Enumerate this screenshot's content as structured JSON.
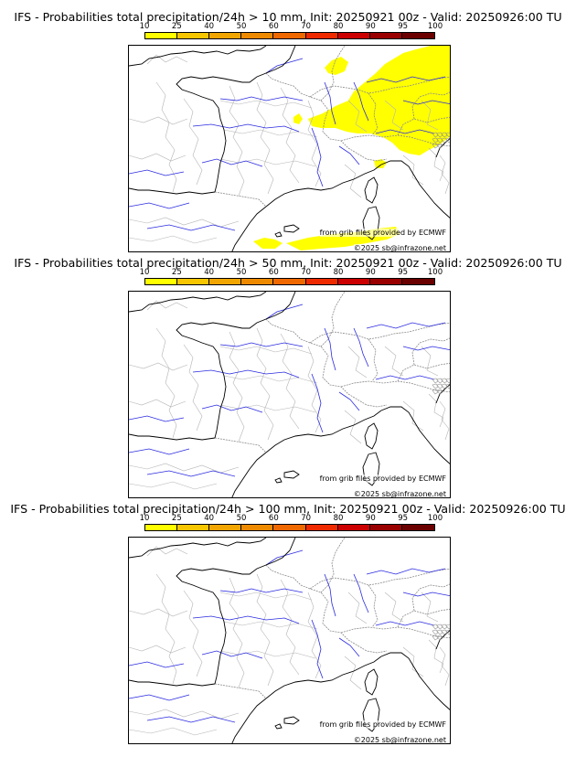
{
  "colors": {
    "coast": "#000000",
    "border": "#8c8c8c",
    "river": "#2a2ae0",
    "prob_10_25": "#ffff00"
  },
  "legend": {
    "ticks": [
      "10",
      "25",
      "40",
      "50",
      "60",
      "70",
      "80",
      "90",
      "95",
      "100"
    ],
    "colors": [
      "#ffff00",
      "#f7c600",
      "#f0a500",
      "#ee8a00",
      "#f06800",
      "#ef2a00",
      "#cc0000",
      "#9a0000",
      "#6b0000"
    ]
  },
  "panels": [
    {
      "title": "IFS - Probabilities total precipitation/24h > 10 mm, Init: 20250921 00z - Valid: 20250926:00 TU",
      "credit_grib": "from grib files provided by ECMWF",
      "credit_copy": "©2025 sb@infrazone.net",
      "precip_level": "10-25"
    },
    {
      "title": "IFS - Probabilities total precipitation/24h > 50 mm, Init: 20250921 00z - Valid: 20250926:00 TU",
      "credit_grib": "from grib files provided by ECMWF",
      "credit_copy": "©2025 sb@infrazone.net",
      "precip_level": ""
    },
    {
      "title": "IFS - Probabilities total precipitation/24h > 100 mm, Init: 20250921 00z - Valid: 20250926:00 TU",
      "credit_grib": "from grib files provided by ECMWF",
      "credit_copy": "©2025 sb@infrazone.net",
      "precip_level": ""
    }
  ]
}
